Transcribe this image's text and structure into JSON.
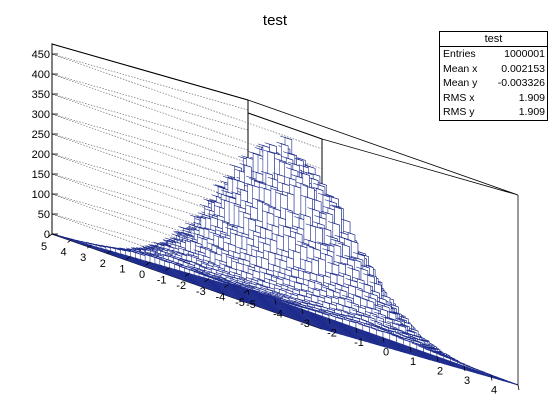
{
  "chart_data": {
    "type": "lego3d",
    "title": "test",
    "xlim": [
      -5,
      5
    ],
    "ylim": [
      -5,
      5
    ],
    "zlim": [
      0,
      475
    ],
    "x_ticks": [
      -5,
      -4,
      -3,
      -2,
      -1,
      0,
      1,
      2,
      3,
      4,
      5
    ],
    "y_ticks": [
      -5,
      -4,
      -3,
      -2,
      -1,
      0,
      1,
      2,
      3,
      4,
      5
    ],
    "z_ticks": [
      0,
      50,
      100,
      150,
      200,
      250,
      300,
      350,
      400,
      450
    ],
    "grid": true,
    "bins_x": 40,
    "bins_y": 40,
    "peak_value": 395,
    "distribution": "2D Gaussian, sigma 1.909 in x and y",
    "bar_color": "#1c2a8c",
    "bar_face_color": "#ffffff"
  },
  "stats": {
    "title": "test",
    "rows": [
      {
        "label": "Entries",
        "value": "1000001"
      },
      {
        "label": "Mean x",
        "value": "0.002153"
      },
      {
        "label": "Mean y",
        "value": "-0.003326"
      },
      {
        "label": "RMS x",
        "value": "1.909"
      },
      {
        "label": "RMS y",
        "value": "1.909"
      }
    ]
  }
}
